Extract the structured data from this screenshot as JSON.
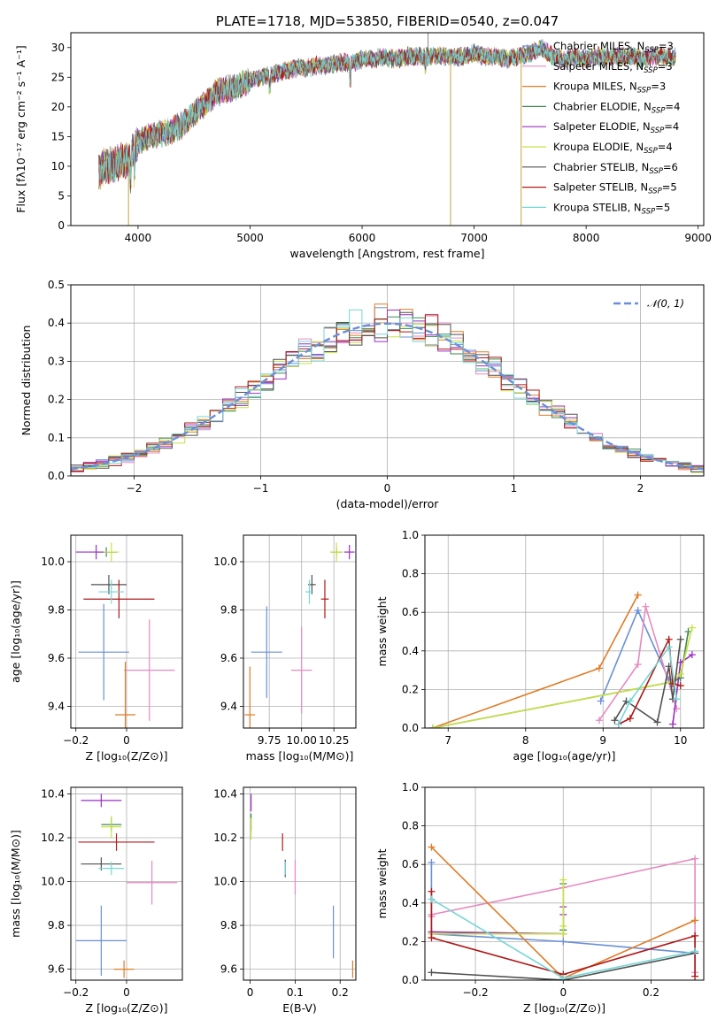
{
  "colors": {
    "Chabrier MILES": "#6a8fd8",
    "Salpeter MILES": "#e68ac0",
    "Kroupa MILES": "#e07b25",
    "Chabrier ELODIE": "#3d8a4e",
    "Salpeter ELODIE": "#9a2fc0",
    "Kroupa ELODIE": "#c8e045",
    "Chabrier STELIB": "#505050",
    "Salpeter STELIB": "#b01818",
    "Kroupa STELIB": "#76d6d6",
    "normal": "#6a8fd8"
  },
  "chart_data": [
    {
      "id": "spectrum",
      "type": "line",
      "title": "PLATE=1718, MJD=53850, FIBERID=0540, z=0.047",
      "xlabel": "wavelength [Angstrom, rest frame]",
      "ylabel": "Flux [fλ10⁻¹⁷ erg cm⁻² s⁻¹ A⁻¹]",
      "xlim": [
        3400,
        9050
      ],
      "ylim": [
        0,
        32.5
      ],
      "xticks": [
        4000,
        5000,
        6000,
        7000,
        8000,
        9000
      ],
      "yticks": [
        0,
        5,
        10,
        15,
        20,
        25,
        30
      ],
      "continuum": {
        "x": [
          3650,
          3700,
          3800,
          3900,
          4000,
          4100,
          4200,
          4300,
          4400,
          4500,
          4600,
          4700,
          4800,
          4900,
          5000,
          5100,
          5200,
          5300,
          5400,
          5500,
          5600,
          5700,
          5800,
          5900,
          6000,
          6100,
          6200,
          6300,
          6400,
          6500,
          6600,
          6700,
          6800,
          6900,
          7000,
          7100,
          7200,
          7300,
          7400,
          7500,
          7600,
          7700,
          7800,
          7900,
          8000,
          8100,
          8200,
          8300,
          8400,
          8500,
          8600,
          8700,
          8800
        ],
        "y": [
          9,
          10,
          10.5,
          11,
          14,
          15,
          15.5,
          16,
          17,
          19,
          20.5,
          22.5,
          23,
          23.5,
          24.5,
          25,
          25.5,
          26,
          26.5,
          26.5,
          27,
          27,
          27.5,
          27.5,
          28,
          28,
          28.5,
          28,
          28.5,
          28.5,
          28.5,
          28.5,
          28.5,
          28.5,
          29,
          28.5,
          28.5,
          28,
          28.5,
          29,
          30,
          28.5,
          28,
          28.5,
          28,
          28.5,
          28.5,
          28.5,
          28.5,
          28,
          28.5,
          28.5,
          28.5
        ]
      },
      "legend": [
        {
          "name": "Chabrier MILES",
          "nssp": "3"
        },
        {
          "name": "Salpeter MILES",
          "nssp": "3"
        },
        {
          "name": "Kroupa MILES",
          "nssp": "3"
        },
        {
          "name": "Chabrier ELODIE",
          "nssp": "4"
        },
        {
          "name": "Salpeter ELODIE",
          "nssp": "4"
        },
        {
          "name": "Kroupa ELODIE",
          "nssp": "4"
        },
        {
          "name": "Chabrier STELIB",
          "nssp": "6"
        },
        {
          "name": "Salpeter STELIB",
          "nssp": "5"
        },
        {
          "name": "Kroupa STELIB",
          "nssp": "5"
        }
      ],
      "legend_prefix": "N",
      "legend_sub": "SSP",
      "legend_placement": "right"
    },
    {
      "id": "residuals",
      "type": "histogram",
      "xlabel": "(data-model)/error",
      "ylabel": "Normed distribution",
      "xlim": [
        -2.5,
        2.5
      ],
      "ylim": [
        0,
        0.5
      ],
      "xticks": [
        -2,
        -1,
        0,
        1,
        2
      ],
      "yticks": [
        0.0,
        0.1,
        0.2,
        0.3,
        0.4,
        0.5
      ],
      "bin_width": 0.1,
      "normal_curve": {
        "label": "𝒩(0, 1)",
        "mean": 0,
        "sigma": 1
      },
      "grid": true,
      "legend_placement": "top-right"
    },
    {
      "id": "age-vs-Z",
      "type": "errorbar",
      "xlabel": "Z [log₁₀(Z/Z⊙)]",
      "ylabel": "age  [log₁₀(age/yr)]",
      "xlim": [
        -0.22,
        0.22
      ],
      "ylim": [
        9.31,
        10.11
      ],
      "xticks": [
        -0.2,
        0.0
      ],
      "yticks": [
        9.4,
        9.6,
        9.8,
        10.0
      ],
      "points": [
        {
          "series": "Chabrier MILES",
          "x": -0.09,
          "y": 9.625,
          "xerr": 0.1,
          "yerr": 0.2
        },
        {
          "series": "Salpeter MILES",
          "x": 0.09,
          "y": 9.55,
          "xerr": 0.1,
          "yerr": 0.21
        },
        {
          "series": "Kroupa MILES",
          "x": -0.005,
          "y": 9.365,
          "xerr": 0.04,
          "yerr": 0.22
        },
        {
          "series": "Chabrier ELODIE",
          "x": -0.08,
          "y": 10.04,
          "xerr": 0.04,
          "yerr": 0.02
        },
        {
          "series": "Salpeter ELODIE",
          "x": -0.12,
          "y": 10.04,
          "xerr": 0.08,
          "yerr": 0.03
        },
        {
          "series": "Kroupa ELODIE",
          "x": -0.06,
          "y": 10.04,
          "xerr": 0.03,
          "yerr": 0.04
        },
        {
          "series": "Chabrier STELIB",
          "x": -0.07,
          "y": 9.905,
          "xerr": 0.07,
          "yerr": 0.04
        },
        {
          "series": "Salpeter STELIB",
          "x": -0.03,
          "y": 9.845,
          "xerr": 0.14,
          "yerr": 0.08
        },
        {
          "series": "Kroupa STELIB",
          "x": -0.06,
          "y": 9.875,
          "xerr": 0.05,
          "yerr": 0.05
        }
      ]
    },
    {
      "id": "age-vs-mass",
      "type": "errorbar",
      "xlabel": "mass [log₁₀(M/M⊙)]",
      "ylabel": "",
      "xlim": [
        9.55,
        10.42
      ],
      "ylim": [
        9.31,
        10.11
      ],
      "xticks": [
        9.75,
        10.0,
        10.25
      ],
      "xticklabels": [
        "9.75",
        "10.00",
        "10.25"
      ],
      "yticks": [
        9.4,
        9.6,
        9.8,
        10.0
      ],
      "points": [
        {
          "series": "Chabrier MILES",
          "x": 9.73,
          "y": 9.625,
          "xerr": 0.12,
          "yerr": 0.19
        },
        {
          "series": "Salpeter MILES",
          "x": 10.0,
          "y": 9.55,
          "xerr": 0.08,
          "yerr": 0.18
        },
        {
          "series": "Kroupa MILES",
          "x": 9.6,
          "y": 9.365,
          "xerr": 0.04,
          "yerr": 0.2
        },
        {
          "series": "Chabrier ELODIE",
          "x": 10.27,
          "y": 10.04,
          "xerr": 0.04,
          "yerr": 0.02
        },
        {
          "series": "Salpeter ELODIE",
          "x": 10.37,
          "y": 10.04,
          "xerr": 0.04,
          "yerr": 0.03
        },
        {
          "series": "Kroupa ELODIE",
          "x": 10.27,
          "y": 10.04,
          "xerr": 0.05,
          "yerr": 0.04
        },
        {
          "series": "Chabrier STELIB",
          "x": 10.08,
          "y": 9.905,
          "xerr": 0.03,
          "yerr": 0.04
        },
        {
          "series": "Salpeter STELIB",
          "x": 10.18,
          "y": 9.845,
          "xerr": 0.03,
          "yerr": 0.08
        },
        {
          "series": "Kroupa STELIB",
          "x": 10.06,
          "y": 9.875,
          "xerr": 0.03,
          "yerr": 0.05
        }
      ]
    },
    {
      "id": "weight-vs-age",
      "type": "line",
      "xlabel": "age  [log₁₀(age/yr)]",
      "ylabel": "mass weight",
      "xlim": [
        6.7,
        10.3
      ],
      "ylim": [
        0,
        1.0
      ],
      "xticks": [
        7,
        8,
        9,
        10
      ],
      "yticks": [
        0.0,
        0.2,
        0.4,
        0.6,
        0.8,
        1.0
      ],
      "grid": true,
      "series": [
        {
          "name": "Chabrier MILES",
          "x": [
            8.97,
            9.45,
            9.85
          ],
          "y": [
            0.14,
            0.61,
            0.25
          ]
        },
        {
          "name": "Salpeter MILES",
          "x": [
            8.95,
            9.45,
            9.55,
            9.95
          ],
          "y": [
            0.04,
            0.33,
            0.63,
            0.1
          ]
        },
        {
          "name": "Kroupa MILES",
          "x": [
            6.8,
            8.95,
            9.45
          ],
          "y": [
            0.0,
            0.31,
            0.69
          ]
        },
        {
          "name": "Chabrier ELODIE",
          "x": [
            6.8,
            9.9,
            10.0,
            10.1
          ],
          "y": [
            0.0,
            0.24,
            0.26,
            0.5
          ]
        },
        {
          "name": "Salpeter ELODIE",
          "x": [
            9.9,
            10.0,
            10.15
          ],
          "y": [
            0.02,
            0.34,
            0.38
          ]
        },
        {
          "name": "Kroupa ELODIE",
          "x": [
            6.8,
            9.9,
            10.0,
            10.15
          ],
          "y": [
            0.0,
            0.24,
            0.28,
            0.52
          ]
        },
        {
          "name": "Chabrier STELIB",
          "x": [
            9.15,
            9.3,
            9.7,
            9.85,
            9.9,
            10.0
          ],
          "y": [
            0.04,
            0.14,
            0.03,
            0.32,
            0.15,
            0.46
          ]
        },
        {
          "name": "Salpeter STELIB",
          "x": [
            9.2,
            9.35,
            9.85,
            9.9,
            10.0
          ],
          "y": [
            0.02,
            0.05,
            0.46,
            0.23,
            0.22
          ]
        },
        {
          "name": "Kroupa STELIB",
          "x": [
            9.2,
            9.35,
            9.85,
            9.95
          ],
          "y": [
            0.02,
            0.14,
            0.42,
            0.15
          ]
        }
      ]
    },
    {
      "id": "mass-vs-Z",
      "type": "errorbar",
      "xlabel": "Z [log₁₀(Z/Z⊙)]",
      "ylabel": "mass [log₁₀(M/M⊙)]",
      "xlim": [
        -0.22,
        0.22
      ],
      "ylim": [
        9.55,
        10.43
      ],
      "xticks": [
        -0.2,
        0.0
      ],
      "yticks": [
        9.6,
        9.8,
        10.0,
        10.2,
        10.4
      ],
      "points": [
        {
          "series": "Chabrier MILES",
          "x": -0.1,
          "y": 9.73,
          "xerr": 0.1,
          "yerr": 0.16
        },
        {
          "series": "Salpeter MILES",
          "x": 0.1,
          "y": 9.995,
          "xerr": 0.1,
          "yerr": 0.1
        },
        {
          "series": "Kroupa MILES",
          "x": -0.01,
          "y": 9.6,
          "xerr": 0.04,
          "yerr": 0.04
        },
        {
          "series": "Chabrier ELODIE",
          "x": -0.06,
          "y": 10.26,
          "xerr": 0.04,
          "yerr": 0.03
        },
        {
          "series": "Salpeter ELODIE",
          "x": -0.1,
          "y": 10.37,
          "xerr": 0.08,
          "yerr": 0.03
        },
        {
          "series": "Kroupa ELODIE",
          "x": -0.06,
          "y": 10.25,
          "xerr": 0.04,
          "yerr": 0.05
        },
        {
          "series": "Chabrier STELIB",
          "x": -0.1,
          "y": 10.08,
          "xerr": 0.08,
          "yerr": 0.03
        },
        {
          "series": "Salpeter STELIB",
          "x": -0.04,
          "y": 10.18,
          "xerr": 0.15,
          "yerr": 0.04
        },
        {
          "series": "Kroupa STELIB",
          "x": -0.06,
          "y": 10.06,
          "xerr": 0.05,
          "yerr": 0.03
        }
      ]
    },
    {
      "id": "mass-vs-EBV",
      "type": "errorbar",
      "xlabel": "E(B-V)",
      "ylabel": "",
      "xlim": [
        -0.015,
        0.235
      ],
      "ylim": [
        9.55,
        10.43
      ],
      "xticks": [
        0.0,
        0.1,
        0.2
      ],
      "yticks": [
        9.6,
        9.8,
        10.0,
        10.2,
        10.4
      ],
      "points": [
        {
          "series": "Chabrier MILES",
          "x": 0.185,
          "y": 9.77,
          "xerr": 0,
          "yerr": 0.12
        },
        {
          "series": "Salpeter MILES",
          "x": 0.1,
          "y": 10.02,
          "xerr": 0,
          "yerr": 0.08
        },
        {
          "series": "Kroupa MILES",
          "x": 0.228,
          "y": 9.6,
          "xerr": 0,
          "yerr": 0.04
        },
        {
          "series": "Chabrier ELODIE",
          "x": 0.002,
          "y": 10.27,
          "xerr": 0,
          "yerr": 0.04
        },
        {
          "series": "Salpeter ELODIE",
          "x": 0.002,
          "y": 10.36,
          "xerr": 0,
          "yerr": 0.04
        },
        {
          "series": "Kroupa ELODIE",
          "x": 0.002,
          "y": 10.24,
          "xerr": 0,
          "yerr": 0.05
        },
        {
          "series": "Chabrier STELIB",
          "x": 0.078,
          "y": 10.06,
          "xerr": 0,
          "yerr": 0.04
        },
        {
          "series": "Salpeter STELIB",
          "x": 0.072,
          "y": 10.18,
          "xerr": 0,
          "yerr": 0.04
        },
        {
          "series": "Kroupa STELIB",
          "x": 0.078,
          "y": 10.06,
          "xerr": 0,
          "yerr": 0.03
        }
      ]
    },
    {
      "id": "weight-vs-Z",
      "type": "line",
      "xlabel": "Z [log₁₀(Z/Z⊙)]",
      "ylabel": "mass weight",
      "xlim": [
        -0.315,
        0.32
      ],
      "ylim": [
        0,
        1.0
      ],
      "xticks": [
        -0.2,
        0.0,
        0.2
      ],
      "yticks": [
        0.0,
        0.2,
        0.4,
        0.6,
        0.8,
        1.0
      ],
      "grid": true,
      "series": [
        {
          "name": "Chabrier MILES",
          "x": [
            -0.3,
            -0.3,
            0.0,
            0.3
          ],
          "y": [
            0.61,
            0.24,
            0.2,
            0.14
          ]
        },
        {
          "name": "Salpeter MILES",
          "x": [
            -0.3,
            -0.3,
            0.0,
            0.3,
            0.3
          ],
          "y": [
            0.33,
            0.34,
            0.48,
            0.63,
            0.04
          ]
        },
        {
          "name": "Kroupa MILES",
          "x": [
            -0.3,
            0.0,
            0.3
          ],
          "y": [
            0.69,
            0.01,
            0.31
          ]
        },
        {
          "name": "Chabrier ELODIE",
          "x": [
            -0.3,
            0.0,
            0.0,
            0.0
          ],
          "y": [
            0.25,
            0.24,
            0.26,
            0.5
          ]
        },
        {
          "name": "Salpeter ELODIE",
          "x": [
            -0.3,
            0.0,
            0.0,
            0.0
          ],
          "y": [
            0.25,
            0.24,
            0.34,
            0.38
          ]
        },
        {
          "name": "Kroupa ELODIE",
          "x": [
            -0.3,
            0.0,
            0.0,
            0.0
          ],
          "y": [
            0.24,
            0.24,
            0.28,
            0.52
          ]
        },
        {
          "name": "Chabrier STELIB",
          "x": [
            -0.3,
            0.0,
            0.3
          ],
          "y": [
            0.04,
            0.0,
            0.14
          ]
        },
        {
          "name": "Salpeter STELIB",
          "x": [
            -0.3,
            -0.3,
            0.0,
            0.3,
            0.3
          ],
          "y": [
            0.46,
            0.22,
            0.03,
            0.23,
            0.02
          ]
        },
        {
          "name": "Kroupa STELIB",
          "x": [
            -0.3,
            0.0,
            0.3
          ],
          "y": [
            0.42,
            0.01,
            0.15
          ]
        }
      ]
    }
  ]
}
